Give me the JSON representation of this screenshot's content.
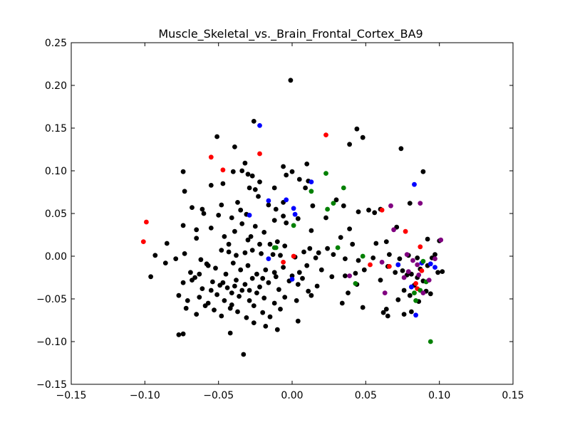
{
  "chart_data": {
    "type": "scatter",
    "title": "Muscle_Skeletal_vs._Brain_Frontal_Cortex_BA9",
    "xlabel": "",
    "ylabel": "",
    "xlim": [
      -0.15,
      0.15
    ],
    "ylim": [
      -0.15,
      0.25
    ],
    "x_ticks": [
      -0.15,
      -0.1,
      -0.05,
      0.0,
      0.05,
      0.1,
      0.15
    ],
    "y_ticks": [
      -0.15,
      -0.1,
      -0.05,
      0.0,
      0.05,
      0.1,
      0.15,
      0.2,
      0.25
    ],
    "x_tick_labels": [
      "−0.15",
      "−0.10",
      "−0.05",
      "0.00",
      "0.05",
      "0.10",
      "0.15"
    ],
    "y_tick_labels": [
      "−0.15",
      "−0.10",
      "−0.05",
      "0.00",
      "0.05",
      "0.10",
      "0.15",
      "0.20",
      "0.25"
    ],
    "grid": false,
    "legend": "none",
    "series": [
      {
        "color": "#000000",
        "points": [
          [
            -0.001,
            0.206
          ],
          [
            -0.026,
            0.158
          ],
          [
            0.044,
            0.149
          ],
          [
            -0.051,
            0.14
          ],
          [
            0.048,
            0.139
          ],
          [
            -0.039,
            0.128
          ],
          [
            0.039,
            0.131
          ],
          [
            0.074,
            0.126
          ],
          [
            -0.032,
            0.109
          ],
          [
            -0.006,
            0.105
          ],
          [
            0.01,
            0.108
          ],
          [
            -0.074,
            0.099
          ],
          [
            -0.04,
            0.099
          ],
          [
            -0.034,
            0.1
          ],
          [
            -0.03,
            0.096
          ],
          [
            -0.027,
            0.094
          ],
          [
            0.089,
            0.099
          ],
          [
            0.0,
            0.099
          ],
          [
            -0.004,
            0.095
          ],
          [
            -0.047,
            0.085
          ],
          [
            -0.055,
            0.083
          ],
          [
            -0.022,
            0.087
          ],
          [
            0.005,
            0.09
          ],
          [
            -0.073,
            0.076
          ],
          [
            -0.029,
            0.08
          ],
          [
            -0.025,
            0.078
          ],
          [
            -0.012,
            0.08
          ],
          [
            0.009,
            0.08
          ],
          [
            0.011,
            0.088
          ],
          [
            -0.037,
            0.063
          ],
          [
            -0.068,
            0.057
          ],
          [
            -0.061,
            0.055
          ],
          [
            -0.048,
            0.06
          ],
          [
            -0.035,
            0.054
          ],
          [
            -0.023,
            0.07
          ],
          [
            -0.006,
            0.063
          ],
          [
            -0.06,
            0.05
          ],
          [
            -0.041,
            0.045
          ],
          [
            -0.031,
            0.049
          ],
          [
            -0.016,
            0.06
          ],
          [
            -0.011,
            0.055
          ],
          [
            -0.006,
            0.047
          ],
          [
            0.004,
            0.044
          ],
          [
            0.014,
            0.059
          ],
          [
            0.03,
            0.066
          ],
          [
            0.035,
            0.059
          ],
          [
            0.045,
            0.052
          ],
          [
            0.052,
            0.054
          ],
          [
            0.056,
            0.051
          ],
          [
            0.06,
            0.055
          ],
          [
            0.08,
            0.062
          ],
          [
            -0.05,
            0.048
          ],
          [
            -0.034,
            0.038
          ],
          [
            -0.025,
            0.035
          ],
          [
            -0.012,
            0.042
          ],
          [
            -0.004,
            0.039
          ],
          [
            -0.065,
            0.031
          ],
          [
            -0.055,
            0.033
          ],
          [
            -0.046,
            0.023
          ],
          [
            -0.039,
            0.029
          ],
          [
            -0.028,
            0.023
          ],
          [
            -0.019,
            0.028
          ],
          [
            -0.01,
            0.017
          ],
          [
            0.013,
            0.03
          ],
          [
            0.023,
            0.045
          ],
          [
            0.039,
            0.032
          ],
          [
            0.057,
            0.015
          ],
          [
            0.064,
            0.017
          ],
          [
            0.071,
            0.034
          ],
          [
            0.092,
            0.02
          ],
          [
            0.1,
            0.018
          ],
          [
            -0.085,
            0.015
          ],
          [
            -0.074,
            0.036
          ],
          [
            -0.065,
            0.021
          ],
          [
            -0.043,
            0.014
          ],
          [
            -0.03,
            0.019
          ],
          [
            -0.022,
            0.014
          ],
          [
            -0.015,
            0.014
          ],
          [
            -0.005,
            0.012
          ],
          [
            0.012,
            0.009
          ],
          [
            0.018,
            0.004
          ],
          [
            0.024,
            0.009
          ],
          [
            0.033,
            0.022
          ],
          [
            0.041,
            0.014
          ],
          [
            -0.093,
            0.001
          ],
          [
            -0.073,
            0.003
          ],
          [
            -0.062,
            -0.004
          ],
          [
            -0.058,
            -0.009
          ],
          [
            -0.048,
            0.007
          ],
          [
            -0.043,
            0.005
          ],
          [
            -0.038,
            0.001
          ],
          [
            -0.032,
            0.004
          ],
          [
            -0.027,
            0.007
          ],
          [
            -0.021,
            0.003
          ],
          [
            -0.013,
            0.002
          ],
          [
            -0.008,
            0.001
          ],
          [
            0.002,
            -0.001
          ],
          [
            0.008,
            0.005
          ],
          [
            0.016,
            -0.002
          ],
          [
            0.028,
            0.002
          ],
          [
            0.036,
            -0.003
          ],
          [
            0.045,
            -0.005
          ],
          [
            0.055,
            -0.002
          ],
          [
            0.066,
            0.002
          ],
          [
            0.073,
            -0.003
          ],
          [
            0.079,
            0.001
          ],
          [
            0.085,
            -0.002
          ],
          [
            0.095,
            -0.002
          ],
          [
            0.097,
            0.002
          ],
          [
            -0.096,
            -0.024
          ],
          [
            -0.086,
            -0.008
          ],
          [
            -0.079,
            -0.003
          ],
          [
            -0.069,
            -0.019
          ],
          [
            -0.063,
            -0.021
          ],
          [
            -0.057,
            -0.011
          ],
          [
            -0.052,
            -0.014
          ],
          [
            -0.045,
            -0.021
          ],
          [
            -0.04,
            -0.008
          ],
          [
            -0.035,
            -0.016
          ],
          [
            -0.03,
            -0.011
          ],
          [
            -0.024,
            -0.021
          ],
          [
            -0.018,
            -0.016
          ],
          [
            -0.012,
            -0.019
          ],
          [
            -0.006,
            -0.013
          ],
          [
            0.0,
            -0.023
          ],
          [
            0.005,
            -0.019
          ],
          [
            0.01,
            -0.011
          ],
          [
            0.02,
            -0.016
          ],
          [
            0.027,
            -0.024
          ],
          [
            0.036,
            -0.023
          ],
          [
            0.043,
            -0.02
          ],
          [
            0.049,
            -0.016
          ],
          [
            0.065,
            -0.012
          ],
          [
            0.07,
            -0.019
          ],
          [
            0.075,
            -0.017
          ],
          [
            0.081,
            -0.021
          ],
          [
            0.087,
            -0.015
          ],
          [
            0.092,
            -0.011
          ],
          [
            0.099,
            -0.019
          ],
          [
            0.102,
            -0.018
          ],
          [
            -0.074,
            -0.031
          ],
          [
            -0.066,
            -0.025
          ],
          [
            -0.061,
            -0.038
          ],
          [
            -0.054,
            -0.03
          ],
          [
            -0.049,
            -0.034
          ],
          [
            -0.044,
            -0.037
          ],
          [
            -0.038,
            -0.028
          ],
          [
            -0.032,
            -0.033
          ],
          [
            -0.027,
            -0.026
          ],
          [
            -0.022,
            -0.036
          ],
          [
            -0.016,
            -0.031
          ],
          [
            -0.009,
            -0.039
          ],
          [
            -0.002,
            -0.029
          ],
          [
            0.004,
            -0.033
          ],
          [
            0.011,
            -0.041
          ],
          [
            0.017,
            -0.035
          ],
          [
            0.038,
            -0.043
          ],
          [
            0.044,
            -0.033
          ],
          [
            0.06,
            -0.028
          ],
          [
            0.076,
            -0.04
          ],
          [
            0.083,
            -0.034
          ],
          [
            0.089,
            -0.029
          ],
          [
            0.094,
            -0.044
          ],
          [
            -0.077,
            -0.046
          ],
          [
            -0.071,
            -0.052
          ],
          [
            -0.063,
            -0.048
          ],
          [
            -0.057,
            -0.055
          ],
          [
            -0.051,
            -0.045
          ],
          [
            -0.046,
            -0.052
          ],
          [
            -0.041,
            -0.057
          ],
          [
            -0.036,
            -0.047
          ],
          [
            -0.029,
            -0.052
          ],
          [
            -0.024,
            -0.043
          ],
          [
            -0.019,
            -0.049
          ],
          [
            -0.012,
            -0.055
          ],
          [
            -0.005,
            -0.048
          ],
          [
            0.003,
            -0.052
          ],
          [
            0.013,
            -0.046
          ],
          [
            0.034,
            -0.055
          ],
          [
            0.048,
            -0.06
          ],
          [
            0.064,
            -0.062
          ],
          [
            0.072,
            -0.051
          ],
          [
            0.08,
            -0.046
          ],
          [
            0.086,
            -0.053
          ],
          [
            0.091,
            -0.041
          ],
          [
            -0.072,
            -0.061
          ],
          [
            -0.065,
            -0.068
          ],
          [
            -0.059,
            -0.058
          ],
          [
            -0.053,
            -0.063
          ],
          [
            -0.048,
            -0.07
          ],
          [
            -0.042,
            -0.061
          ],
          [
            -0.037,
            -0.065
          ],
          [
            -0.031,
            -0.072
          ],
          [
            -0.026,
            -0.058
          ],
          [
            -0.02,
            -0.066
          ],
          [
            -0.015,
            -0.071
          ],
          [
            -0.008,
            -0.062
          ],
          [
            0.065,
            -0.07
          ],
          [
            0.076,
            -0.068
          ],
          [
            0.081,
            -0.065
          ],
          [
            -0.077,
            -0.092
          ],
          [
            -0.074,
            -0.091
          ],
          [
            -0.042,
            -0.09
          ],
          [
            -0.026,
            -0.078
          ],
          [
            -0.018,
            -0.082
          ],
          [
            -0.01,
            -0.086
          ],
          [
            0.004,
            -0.076
          ],
          [
            -0.033,
            -0.115
          ],
          [
            -0.068,
            -0.028
          ],
          [
            -0.055,
            -0.04
          ],
          [
            -0.041,
            -0.043
          ],
          [
            -0.034,
            -0.04
          ],
          [
            -0.02,
            -0.026
          ],
          [
            -0.011,
            -0.024
          ],
          [
            0.007,
            -0.026
          ],
          [
            -0.047,
            -0.031
          ],
          [
            -0.039,
            -0.035
          ],
          [
            -0.029,
            -0.04
          ],
          [
            0.085,
            -0.025
          ],
          [
            0.078,
            -0.022
          ],
          [
            0.072,
            -0.01
          ],
          [
            0.062,
            -0.066
          ]
        ]
      },
      {
        "color": "#ff0000",
        "points": [
          [
            -0.099,
            0.04
          ],
          [
            -0.101,
            0.017
          ],
          [
            -0.055,
            0.116
          ],
          [
            -0.047,
            0.101
          ],
          [
            -0.022,
            0.12
          ],
          [
            0.023,
            0.142
          ],
          [
            0.001,
            0.0
          ],
          [
            -0.006,
            -0.007
          ],
          [
            0.053,
            -0.01
          ],
          [
            0.061,
            0.054
          ],
          [
            0.077,
            0.029
          ],
          [
            0.087,
            0.011
          ],
          [
            0.066,
            -0.012
          ],
          [
            0.084,
            -0.032
          ],
          [
            0.088,
            -0.017
          ],
          [
            0.085,
            -0.038
          ]
        ]
      },
      {
        "color": "#0000ff",
        "points": [
          [
            -0.022,
            0.153
          ],
          [
            -0.029,
            0.048
          ],
          [
            -0.016,
            0.065
          ],
          [
            -0.004,
            0.066
          ],
          [
            0.001,
            0.056
          ],
          [
            0.002,
            0.049
          ],
          [
            0.013,
            0.087
          ],
          [
            -0.016,
            -0.003
          ],
          [
            0.0,
            -0.027
          ],
          [
            0.083,
            0.084
          ],
          [
            0.072,
            -0.01
          ],
          [
            0.084,
            -0.069
          ],
          [
            0.088,
            -0.008
          ],
          [
            0.097,
            -0.013
          ],
          [
            0.094,
            -0.009
          ],
          [
            0.081,
            -0.036
          ]
        ]
      },
      {
        "color": "#008000",
        "points": [
          [
            0.023,
            0.097
          ],
          [
            0.035,
            0.08
          ],
          [
            0.013,
            0.076
          ],
          [
            0.028,
            0.062
          ],
          [
            0.024,
            0.055
          ],
          [
            0.001,
            0.036
          ],
          [
            -0.012,
            0.01
          ],
          [
            -0.011,
            0.01
          ],
          [
            0.031,
            0.01
          ],
          [
            0.048,
            0.0
          ],
          [
            0.043,
            -0.032
          ],
          [
            0.083,
            -0.043
          ],
          [
            0.084,
            -0.052
          ],
          [
            0.089,
            -0.006
          ],
          [
            0.087,
            -0.04
          ],
          [
            0.094,
            -0.1
          ],
          [
            0.091,
            -0.03
          ]
        ]
      },
      {
        "color": "#800080",
        "points": [
          [
            0.067,
            0.059
          ],
          [
            0.087,
            0.062
          ],
          [
            0.069,
            0.031
          ],
          [
            0.101,
            0.019
          ],
          [
            0.061,
            -0.007
          ],
          [
            0.078,
            0.002
          ],
          [
            0.085,
            -0.01
          ],
          [
            0.097,
            -0.003
          ],
          [
            0.039,
            -0.023
          ],
          [
            0.063,
            -0.043
          ],
          [
            0.076,
            -0.025
          ],
          [
            0.079,
            -0.018
          ],
          [
            0.089,
            -0.043
          ],
          [
            0.093,
            -0.028
          ],
          [
            0.086,
            -0.022
          ],
          [
            0.082,
            -0.005
          ]
        ]
      }
    ]
  }
}
